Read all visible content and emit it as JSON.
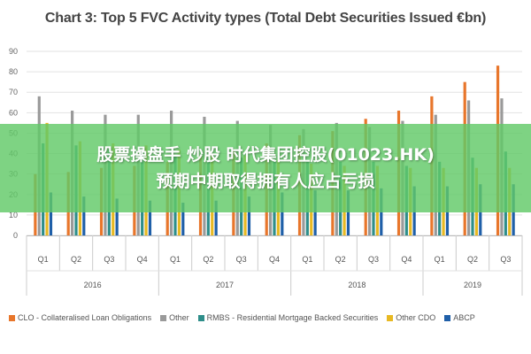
{
  "chart_data": {
    "type": "bar",
    "title": "Chart 3: Top 5 FVC Activity types (Total Debt Securities Issued €bn)",
    "xlabel": "",
    "ylabel": "",
    "ylim": [
      0,
      90
    ],
    "yticks": [
      0,
      10,
      20,
      30,
      40,
      50,
      60,
      70,
      80,
      90
    ],
    "grid": true,
    "legend_position": "bottom",
    "categories": [
      "Q1",
      "Q2",
      "Q3",
      "Q4",
      "Q1",
      "Q2",
      "Q3",
      "Q4",
      "Q1",
      "Q2",
      "Q3",
      "Q4",
      "Q1",
      "Q2",
      "Q3"
    ],
    "groups": [
      {
        "label": "2016",
        "span": 4
      },
      {
        "label": "2017",
        "span": 4
      },
      {
        "label": "2018",
        "span": 4
      },
      {
        "label": "2019",
        "span": 3
      }
    ],
    "series": [
      {
        "name": "CLO - Collateralised Loan Obligations",
        "color": "#e8762b",
        "values": [
          30,
          31,
          33,
          34,
          36,
          39,
          42,
          45,
          49,
          51,
          57,
          61,
          68,
          75,
          83
        ]
      },
      {
        "name": "Other",
        "color": "#9a9a9a",
        "values": [
          68,
          61,
          59,
          59,
          61,
          58,
          56,
          54,
          52,
          55,
          53,
          56,
          59,
          66,
          67
        ]
      },
      {
        "name": "RMBS - Residential Mortgage Backed Securities",
        "color": "#2e8e8a",
        "values": [
          45,
          44,
          42,
          41,
          39,
          38,
          38,
          37,
          36,
          36,
          36,
          34,
          36,
          38,
          41
        ]
      },
      {
        "name": "Other CDO",
        "color": "#e8b923",
        "values": [
          55,
          46,
          45,
          44,
          42,
          40,
          39,
          37,
          35,
          34,
          34,
          33,
          33,
          33,
          33
        ]
      },
      {
        "name": "ABCP",
        "color": "#1f5fa8",
        "values": [
          21,
          19,
          18,
          17,
          16,
          17,
          19,
          21,
          22,
          22,
          23,
          24,
          24,
          25,
          25
        ]
      }
    ]
  },
  "overlay": {
    "line1": "股票操盘手 炒股 时代集团控股(01023.HK)",
    "line2": "预期中期取得拥有人应占亏损"
  }
}
